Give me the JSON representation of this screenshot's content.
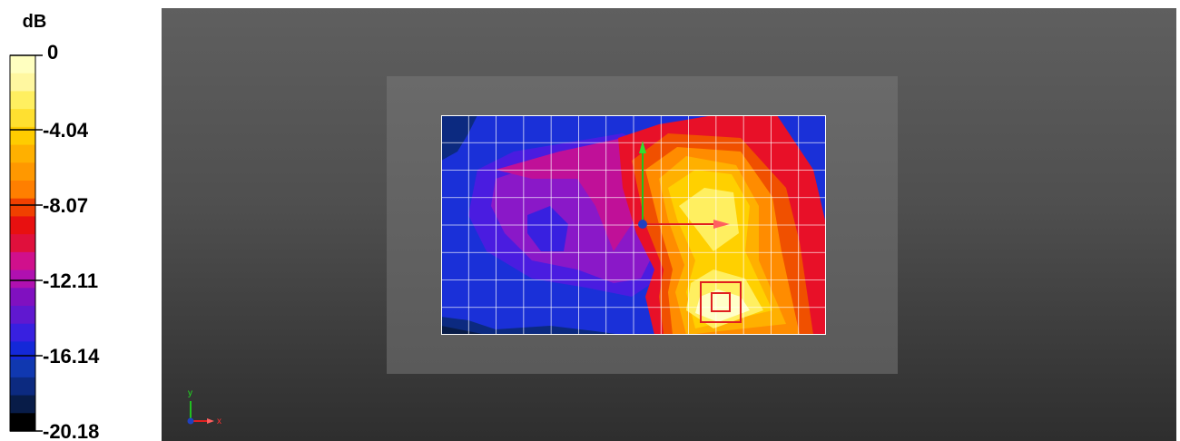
{
  "legend": {
    "unit": "dB",
    "tick_labels": [
      "0",
      "-4.04",
      "-8.07",
      "-12.11",
      "-16.14",
      "-20.18"
    ],
    "colors_top_to_bottom": [
      "#ffffc0",
      "#fff7a0",
      "#ffef60",
      "#ffe030",
      "#ffcc00",
      "#ffb000",
      "#ff9800",
      "#ff7f00",
      "#f04000",
      "#e81010",
      "#e0103c",
      "#d0108c",
      "#b010b0",
      "#8010c0",
      "#6018d0",
      "#3820e0",
      "#1428d8",
      "#1038b0",
      "#0c2a80",
      "#081c48",
      "#000000"
    ]
  },
  "triad": {
    "y_label": "y",
    "x_label": "x"
  }
}
